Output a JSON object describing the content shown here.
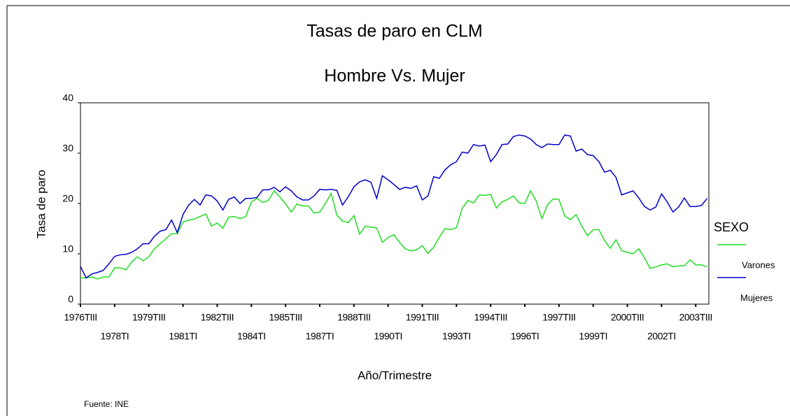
{
  "chart_data": {
    "type": "line",
    "title": "Tasas de paro en CLM",
    "subtitle": "Hombre Vs. Mujer",
    "y_label": "Tasa de paro",
    "x_label": "Año/Trimestre",
    "source": "Fuente: INE",
    "legend_title": "SEXO",
    "legend": "right",
    "categories": [
      "1976TIII",
      null,
      null,
      null,
      null,
      null,
      "1978TI",
      null,
      null,
      null,
      null,
      null,
      "1979TIII",
      null,
      null,
      null,
      null,
      null,
      "1981TI",
      null,
      null,
      null,
      null,
      null,
      "1982TIII",
      null,
      null,
      null,
      null,
      null,
      "1984TI",
      null,
      null,
      null,
      null,
      null,
      "1985TIII",
      null,
      null,
      null,
      null,
      null,
      "1987TI",
      null,
      null,
      null,
      null,
      null,
      "1988TIII",
      null,
      null,
      null,
      null,
      null,
      "1990TI",
      null,
      null,
      null,
      null,
      null,
      "1991TIII",
      null,
      null,
      null,
      null,
      null,
      "1993TI",
      null,
      null,
      null,
      null,
      null,
      "1994TIII",
      null,
      null,
      null,
      null,
      null,
      "1996TI",
      null,
      null,
      null,
      null,
      null,
      "1997TIII",
      null,
      null,
      null,
      null,
      null,
      "1999TI",
      null,
      null,
      null,
      null,
      null,
      "2000TIII",
      null,
      null,
      null,
      null,
      null,
      "2002TI",
      null,
      null,
      null,
      null,
      null,
      "2003TIII",
      null,
      null
    ],
    "ylim": [
      0,
      40
    ],
    "yticks": [
      0,
      10,
      20,
      30,
      40
    ],
    "series": [
      {
        "name": "Varones",
        "color": "#22dd22",
        "values": [
          5.2,
          5.2,
          5.4,
          5,
          5.4,
          5.4,
          7.2,
          7.2,
          6.8,
          8.4,
          9.4,
          8.6,
          9.4,
          11,
          12,
          13,
          14,
          14,
          16.3,
          16.7,
          16.9,
          17.4,
          17.9,
          15.5,
          16.1,
          15.1,
          17.3,
          17.4,
          17,
          17.4,
          20.3,
          21,
          20.2,
          20.6,
          22.5,
          21.3,
          19.9,
          18.3,
          19.9,
          19.5,
          19.5,
          18.1,
          18.3,
          20,
          22,
          17.7,
          16.5,
          16.2,
          17.6,
          13.9,
          15.5,
          15.3,
          15.1,
          12.3,
          13.2,
          13.8,
          12.3,
          11,
          10.6,
          10.8,
          11.6,
          10.1,
          11.3,
          13.3,
          15,
          14.8,
          15.2,
          19,
          20.6,
          20.1,
          21.7,
          21.6,
          21.8,
          19.1,
          20.3,
          20.8,
          21.5,
          20.1,
          20,
          22.5,
          20.5,
          17,
          19.8,
          20.9,
          20.8,
          17.5,
          16.8,
          17.8,
          15.5,
          13.6,
          14.8,
          14.8,
          12.6,
          11.1,
          12.8,
          10.6,
          10.3,
          10,
          11,
          9.2,
          7.1,
          7.4,
          7.8,
          8,
          7.4,
          7.6,
          7.6,
          8.8,
          7.8,
          7.8,
          7.4
        ]
      },
      {
        "name": "Mujeres",
        "color": "#0000cc",
        "values": [
          7.5,
          5.2,
          6,
          6.3,
          6.7,
          8,
          9.5,
          9.8,
          9.9,
          10.3,
          11,
          12,
          12,
          13.5,
          14.5,
          14.8,
          16.7,
          14.2,
          17.8,
          19.7,
          20.8,
          19.7,
          21.7,
          21.5,
          20.5,
          18.7,
          20.8,
          21.3,
          20,
          21,
          21,
          21.2,
          22.7,
          22.7,
          23.2,
          22.3,
          23.3,
          22.5,
          21.3,
          20.7,
          20.7,
          21.5,
          22.8,
          22.7,
          22.8,
          22.6,
          19.7,
          21.3,
          23.3,
          24.3,
          24.7,
          24.2,
          21,
          25.5,
          24.7,
          23.8,
          22.8,
          23.2,
          23,
          23.5,
          20.7,
          21.5,
          25.3,
          25,
          26.7,
          27.7,
          28.3,
          30.2,
          30,
          31.7,
          31.4,
          31.6,
          28.3,
          29.7,
          31.7,
          31.8,
          33.3,
          33.6,
          33.4,
          32.8,
          31.7,
          31.1,
          31.8,
          31.7,
          31.7,
          33.6,
          33.4,
          30.4,
          30.8,
          29.7,
          29.5,
          28.3,
          26.2,
          26.6,
          25.2,
          21.7,
          22.1,
          22.5,
          21.1,
          19.4,
          18.7,
          19.3,
          21.9,
          20.3,
          18.3,
          19.3,
          21.1,
          19.4,
          19.4,
          19.6,
          21
        ]
      }
    ]
  }
}
